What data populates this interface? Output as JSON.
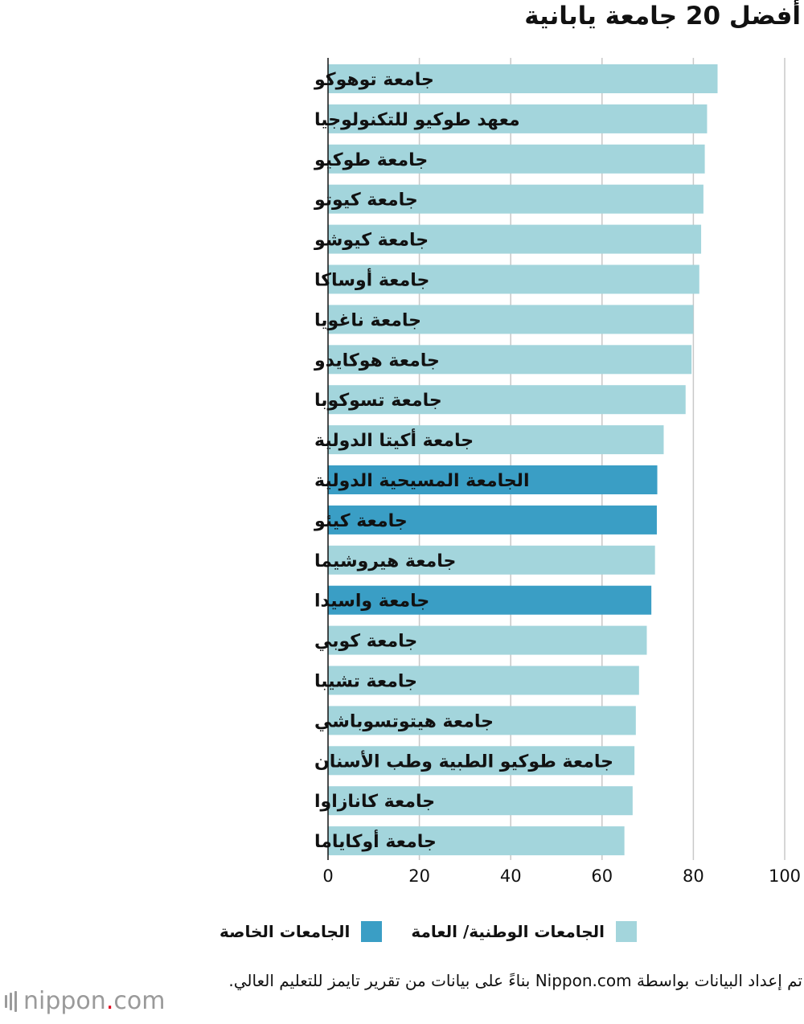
{
  "title": "أفضل 20 جامعة يابانية",
  "chart_data": {
    "type": "bar",
    "orientation": "horizontal",
    "title": "أفضل 20 جامعة يابانية",
    "xlim": [
      0,
      100
    ],
    "xticks": [
      0,
      20,
      40,
      60,
      80,
      100
    ],
    "grid": true,
    "legend_position": "bottom",
    "colors": {
      "public": "#a3d5dc",
      "private": "#3a9ec5"
    },
    "categories": [
      "جامعة توهوكو",
      "معهد طوكيو للتكنولوجيا",
      "جامعة طوكيو",
      "جامعة كيوتو",
      "جامعة كيوشو",
      "جامعة أوساكا",
      "جامعة ناغويا",
      "جامعة هوكايدو",
      "جامعة تسوكوبا",
      "جامعة أكيتا الدولية",
      "الجامعة المسيحية الدولية",
      "جامعة كيئو",
      "جامعة هيروشيما",
      "جامعة واسيدا",
      "جامعة كوبي",
      "جامعة تشيبا",
      "جامعة هيتوتسوباشي",
      "جامعة طوكيو الطبية وطب الأسنان",
      "جامعة كانازاوا",
      "جامعة أوكاياما"
    ],
    "values": [
      85.3,
      83.0,
      82.5,
      82.2,
      81.7,
      81.3,
      80.0,
      79.6,
      78.3,
      73.5,
      72.1,
      72.0,
      71.6,
      70.8,
      69.8,
      68.1,
      67.4,
      67.1,
      66.7,
      64.9
    ],
    "groups": [
      "public",
      "public",
      "public",
      "public",
      "public",
      "public",
      "public",
      "public",
      "public",
      "public",
      "private",
      "private",
      "public",
      "private",
      "public",
      "public",
      "public",
      "public",
      "public",
      "public"
    ],
    "legend": [
      {
        "key": "public",
        "label": "الجامعات الوطنية/ العامة"
      },
      {
        "key": "private",
        "label": "الجامعات الخاصة"
      }
    ]
  },
  "source": "تم إعداد البيانات بواسطة Nippon.com بناءً على بيانات من تقرير تايمز للتعليم العالي.",
  "logo": {
    "name": "nippon",
    "dot": ".",
    "tld": "com"
  }
}
